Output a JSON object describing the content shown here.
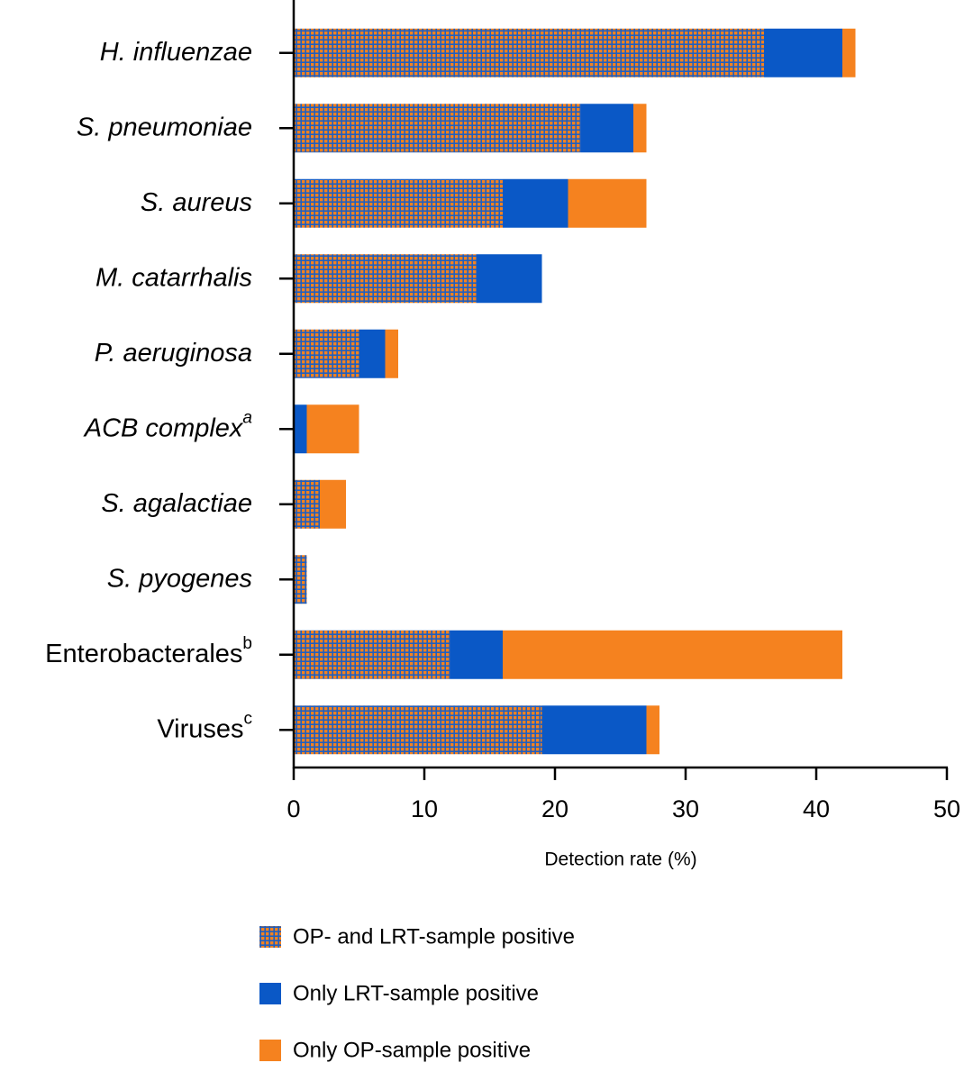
{
  "chart_data": {
    "type": "stacked_barh",
    "categories": [
      "H. influenzae",
      "S. pneumoniae",
      "S. aureus",
      "M. catarrhalis",
      "P. aeruginosa",
      "ACB complex",
      "S. agalactiae",
      "S. pyogenes",
      "Enterobacterales",
      "Viruses"
    ],
    "category_notes": [
      null,
      null,
      null,
      null,
      null,
      "a",
      null,
      null,
      "b",
      "c"
    ],
    "category_italic": [
      true,
      true,
      true,
      true,
      true,
      true,
      true,
      true,
      false,
      false
    ],
    "series": [
      {
        "name": "OP- and LRT-sample positive",
        "color": "#f5821f",
        "pattern": "checkered",
        "pattern_color": "#1f5fc0",
        "values": [
          36,
          22,
          16,
          14,
          5,
          0,
          2,
          1,
          12,
          19
        ]
      },
      {
        "name": "Only LRT-sample positive",
        "color": "#0a58c6",
        "values": [
          6,
          4,
          5,
          5,
          2,
          1,
          0,
          0,
          4,
          8
        ]
      },
      {
        "name": "Only OP-sample positive",
        "color": "#f5821f",
        "values": [
          1,
          1,
          6,
          0,
          1,
          4,
          2,
          0,
          26,
          1
        ]
      }
    ],
    "x_label": "Detection rate (%)",
    "xlim": [
      0,
      50
    ],
    "xticks": [
      0,
      10,
      20,
      30,
      40,
      50
    ]
  }
}
